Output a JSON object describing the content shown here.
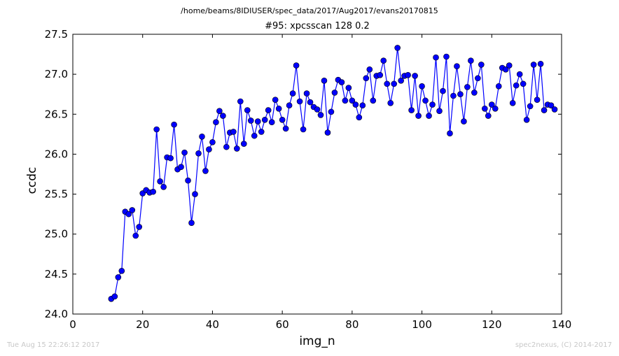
{
  "header": {
    "path_title": "/home/beams/8IDIUSER/spec_data/2017/Aug2017/evans20170815",
    "scan_title": "#95: xpcsscan 128 0.2"
  },
  "footer": {
    "timestamp": "Tue Aug 15 22:26:12 2017",
    "credit": "spec2nexus, (C) 2014-2017"
  },
  "colors": {
    "series": "#0000ff",
    "marker_edge": "#000000",
    "axes": "#000000"
  },
  "chart_data": {
    "type": "line",
    "title": "#95: xpcsscan 128 0.2",
    "xlabel": "img_n",
    "ylabel": "ccdc",
    "xlim": [
      0,
      140
    ],
    "ylim": [
      24.0,
      27.5
    ],
    "xticks": [
      0,
      20,
      40,
      60,
      80,
      100,
      120,
      140
    ],
    "xtick_labels": [
      "0",
      "20",
      "40",
      "60",
      "80",
      "100",
      "120",
      "140"
    ],
    "yticks": [
      24.0,
      24.5,
      25.0,
      25.5,
      26.0,
      26.5,
      27.0,
      27.5
    ],
    "ytick_labels": [
      "24.0",
      "24.5",
      "25.0",
      "25.5",
      "26.0",
      "26.5",
      "27.0",
      "27.5"
    ],
    "grid": false,
    "legend": false,
    "marker": "circle",
    "series": [
      {
        "x": [
          11,
          12,
          13,
          14,
          15,
          16,
          17,
          18,
          19,
          20,
          21,
          22,
          23,
          24,
          25,
          26,
          27,
          28,
          29,
          30,
          31,
          32,
          33,
          34,
          35,
          36,
          37,
          38,
          39,
          40,
          41,
          42,
          43,
          44,
          45,
          46,
          47,
          48,
          49,
          50,
          51,
          52,
          53,
          54,
          55,
          56,
          57,
          58,
          59,
          60,
          61,
          62,
          63,
          64,
          65,
          66,
          67,
          68,
          69,
          70,
          71,
          72,
          73,
          74,
          75,
          76,
          77,
          78,
          79,
          80,
          81,
          82,
          83,
          84,
          85,
          86,
          87,
          88,
          89,
          90,
          91,
          92,
          93,
          94,
          95,
          96,
          97,
          98,
          99,
          100,
          101,
          102,
          103,
          104,
          105,
          106,
          107,
          108,
          109,
          110,
          111,
          112,
          113,
          114,
          115,
          116,
          117,
          118,
          119,
          120,
          121,
          122,
          123,
          124,
          125,
          126,
          127,
          128,
          129,
          130,
          131,
          132,
          133,
          134,
          135,
          136,
          137,
          138
        ],
        "y": [
          24.19,
          24.22,
          24.46,
          24.54,
          25.28,
          25.25,
          25.3,
          24.98,
          25.09,
          25.51,
          25.55,
          25.52,
          25.53,
          26.31,
          25.66,
          25.59,
          25.96,
          25.95,
          26.37,
          25.81,
          25.84,
          26.02,
          25.67,
          25.14,
          25.5,
          26.01,
          26.22,
          25.79,
          26.06,
          26.15,
          26.4,
          26.54,
          26.48,
          26.09,
          26.27,
          26.28,
          26.07,
          26.66,
          26.13,
          26.55,
          26.42,
          26.23,
          26.41,
          26.28,
          26.43,
          26.55,
          26.4,
          26.68,
          26.57,
          26.43,
          26.32,
          26.61,
          26.76,
          27.11,
          26.66,
          26.31,
          26.76,
          26.65,
          26.59,
          26.56,
          26.49,
          26.92,
          26.27,
          26.53,
          26.77,
          26.93,
          26.9,
          26.67,
          26.83,
          26.67,
          26.62,
          26.46,
          26.61,
          26.95,
          27.06,
          26.67,
          26.98,
          26.99,
          27.17,
          26.88,
          26.64,
          26.88,
          27.33,
          26.92,
          26.98,
          26.99,
          26.55,
          26.98,
          26.48,
          26.85,
          26.67,
          26.48,
          26.62,
          27.21,
          26.54,
          26.79,
          27.22,
          26.26,
          26.73,
          27.1,
          26.75,
          26.41,
          26.84,
          27.17,
          26.77,
          26.95,
          27.12,
          26.57,
          26.48,
          26.62,
          26.57,
          26.85,
          27.08,
          27.06,
          27.11,
          26.64,
          26.86,
          27.0,
          26.88,
          26.43,
          26.6,
          27.12,
          26.68,
          27.13,
          26.55,
          26.62,
          26.61,
          26.56
        ]
      }
    ]
  }
}
